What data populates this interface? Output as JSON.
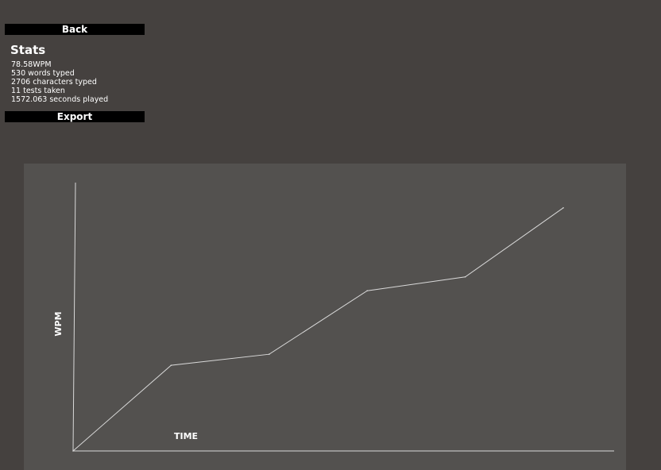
{
  "buttons": {
    "back_label": "Back",
    "export_label": "Export"
  },
  "stats": {
    "title": "Stats",
    "lines": [
      "78.58WPM",
      "530 words typed",
      "2706 characters typed",
      "11 tests taken",
      "1572.063 seconds played"
    ]
  },
  "colors": {
    "background": "#45413f",
    "panel": "#53514f",
    "button": "#000000",
    "line": "#d9d9d9"
  },
  "chart_data": {
    "type": "line",
    "title": "",
    "xlabel": "TIME",
    "ylabel": "WPM",
    "grid": false,
    "x": [
      0,
      1,
      2,
      3,
      4,
      5
    ],
    "values": [
      0,
      31,
      35,
      58,
      63,
      88
    ],
    "ylim": [
      0,
      100
    ]
  }
}
